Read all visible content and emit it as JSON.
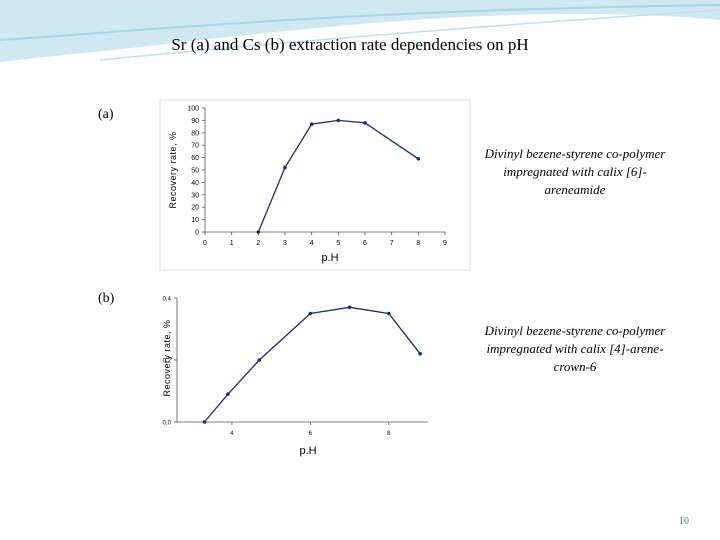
{
  "title": "Sr (a) and Cs (b) extraction rate dependencies on pH",
  "page_number": "10",
  "chart_data": [
    {
      "type": "line",
      "panel": "(a)",
      "x_label": "p.H",
      "y_label": "Recovery rate, %",
      "annotation": "Divinyl bezene-styrene co-polymer impregnated with calix [6]-areneamide",
      "x": [
        2,
        3,
        4,
        5,
        6,
        8
      ],
      "values": [
        0,
        52,
        87,
        90,
        88,
        59
      ],
      "color": "#1f2a6b",
      "xlim": [
        0,
        9
      ],
      "xticks": [
        0,
        1,
        2,
        3,
        4,
        5,
        6,
        7,
        8,
        9
      ],
      "ylim": [
        0,
        100
      ],
      "yticks": [
        0,
        10,
        20,
        30,
        40,
        50,
        60,
        70,
        80,
        90,
        100
      ]
    },
    {
      "type": "line",
      "panel": "(b)",
      "x_label": "p.H",
      "y_label": "Recovery rate, %",
      "annotation": "Divinyl bezene-styrene co-polymer impregnated with calix [4]-arene-crown-6",
      "x": [
        3.3,
        3.9,
        4.7,
        6,
        7,
        8,
        8.8
      ],
      "values": [
        0,
        0.09,
        0.2,
        0.35,
        0.37,
        0.35,
        0.22
      ],
      "color": "#1f2a6b",
      "xlim": [
        2.6,
        9
      ],
      "xticks": [
        4,
        6,
        8
      ],
      "ylim": [
        0,
        0.4
      ],
      "yticks": [
        {
          "value": 0,
          "label": "0,0"
        },
        {
          "value": 0.2,
          "label": "0,2"
        },
        {
          "value": 0.4,
          "label": "0,4"
        }
      ]
    }
  ]
}
